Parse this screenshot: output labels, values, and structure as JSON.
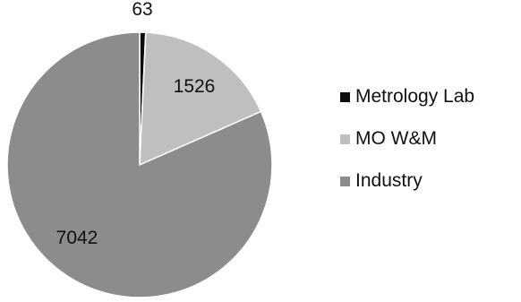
{
  "chart_data": {
    "type": "pie",
    "categories": [
      "Metrology Lab",
      "MO W&M",
      "Industry"
    ],
    "values": [
      63,
      1526,
      7042
    ],
    "colors": [
      "#0d0d0d",
      "#bfbfbf",
      "#8c8c8c"
    ],
    "data_labels": [
      "63",
      "1526",
      "7042"
    ],
    "start_angle": "12 o'clock",
    "direction": "clockwise",
    "legend_position": "right"
  }
}
